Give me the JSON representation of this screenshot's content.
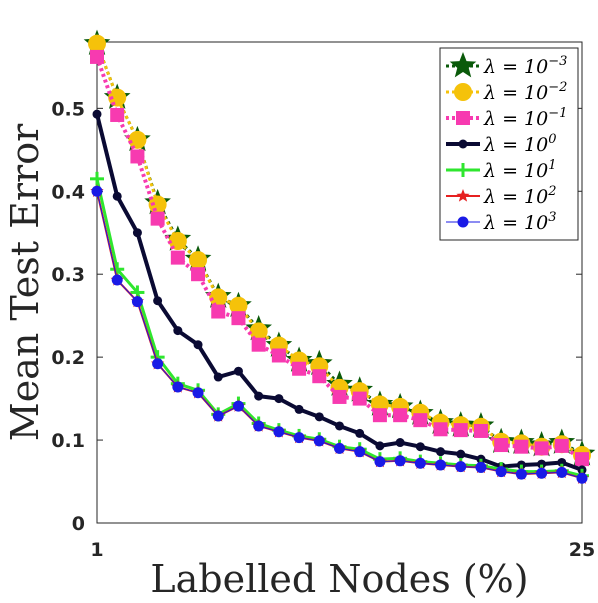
{
  "chart_data": {
    "type": "line",
    "title": "",
    "xlabel": "Labelled Nodes (%)",
    "ylabel": "Mean Test Error",
    "xlim": [
      1,
      25
    ],
    "ylim": [
      0,
      0.58
    ],
    "xticks": [
      "1",
      "25"
    ],
    "yticks": [
      "0",
      "0.1",
      "0.2",
      "0.3",
      "0.4",
      "0.5"
    ],
    "grid": false,
    "legend_position": "top-right",
    "x": [
      1,
      2,
      3,
      4,
      5,
      6,
      7,
      8,
      9,
      10,
      11,
      12,
      13,
      14,
      15,
      16,
      17,
      18,
      19,
      20,
      21,
      22,
      23,
      24,
      25
    ],
    "series": [
      {
        "name": "λ = 10^-3",
        "color": "#0a5a0a",
        "marker": "star",
        "values": [
          0.578,
          0.513,
          0.462,
          0.386,
          0.342,
          0.318,
          0.273,
          0.262,
          0.234,
          0.214,
          0.196,
          0.192,
          0.167,
          0.16,
          0.143,
          0.14,
          0.132,
          0.121,
          0.118,
          0.117,
          0.098,
          0.097,
          0.094,
          0.097,
          0.083
        ]
      },
      {
        "name": "λ = 10^-2",
        "color": "#f5c20a",
        "marker": "circle",
        "values": [
          0.578,
          0.513,
          0.462,
          0.384,
          0.34,
          0.317,
          0.272,
          0.262,
          0.231,
          0.214,
          0.196,
          0.189,
          0.163,
          0.159,
          0.143,
          0.14,
          0.133,
          0.121,
          0.118,
          0.116,
          0.098,
          0.096,
          0.092,
          0.095,
          0.082
        ]
      },
      {
        "name": "λ = 10^-1",
        "color": "#f73ab0",
        "marker": "square",
        "values": [
          0.562,
          0.492,
          0.442,
          0.367,
          0.32,
          0.3,
          0.255,
          0.247,
          0.215,
          0.202,
          0.186,
          0.177,
          0.152,
          0.15,
          0.13,
          0.13,
          0.124,
          0.113,
          0.112,
          0.111,
          0.094,
          0.092,
          0.09,
          0.093,
          0.077
        ]
      },
      {
        "name": "λ = 10^0",
        "color": "#0a0a33",
        "marker": "circle-filled",
        "values": [
          0.493,
          0.394,
          0.35,
          0.268,
          0.232,
          0.215,
          0.176,
          0.183,
          0.153,
          0.15,
          0.137,
          0.128,
          0.117,
          0.108,
          0.093,
          0.097,
          0.092,
          0.086,
          0.083,
          0.077,
          0.068,
          0.07,
          0.071,
          0.073,
          0.064
        ]
      },
      {
        "name": "λ = 10^1",
        "color": "#2ee62e",
        "marker": "plus",
        "values": [
          0.415,
          0.306,
          0.278,
          0.2,
          0.168,
          0.16,
          0.131,
          0.144,
          0.12,
          0.112,
          0.105,
          0.101,
          0.092,
          0.089,
          0.077,
          0.078,
          0.074,
          0.072,
          0.07,
          0.069,
          0.065,
          0.062,
          0.062,
          0.063,
          0.057
        ]
      },
      {
        "name": "λ = 10^2",
        "color": "#e62020",
        "marker": "star-small",
        "values": [
          0.4,
          0.293,
          0.267,
          0.192,
          0.164,
          0.157,
          0.129,
          0.141,
          0.117,
          0.11,
          0.103,
          0.099,
          0.09,
          0.086,
          0.074,
          0.075,
          0.072,
          0.07,
          0.068,
          0.067,
          0.062,
          0.059,
          0.06,
          0.061,
          0.054
        ]
      },
      {
        "name": "λ = 10^3",
        "color": "#1a1ae6",
        "marker": "circle-blue",
        "values": [
          0.4,
          0.293,
          0.267,
          0.192,
          0.164,
          0.157,
          0.129,
          0.141,
          0.117,
          0.11,
          0.103,
          0.099,
          0.09,
          0.086,
          0.074,
          0.075,
          0.072,
          0.07,
          0.068,
          0.067,
          0.062,
          0.059,
          0.06,
          0.061,
          0.054
        ]
      }
    ],
    "legend": [
      {
        "base": "λ = 10",
        "exp": "−3"
      },
      {
        "base": "λ = 10",
        "exp": "−2"
      },
      {
        "base": "λ = 10",
        "exp": "−1"
      },
      {
        "base": "λ = 10",
        "exp": "0"
      },
      {
        "base": "λ = 10",
        "exp": "1"
      },
      {
        "base": "λ = 10",
        "exp": "2"
      },
      {
        "base": "λ = 10",
        "exp": "3"
      }
    ]
  }
}
